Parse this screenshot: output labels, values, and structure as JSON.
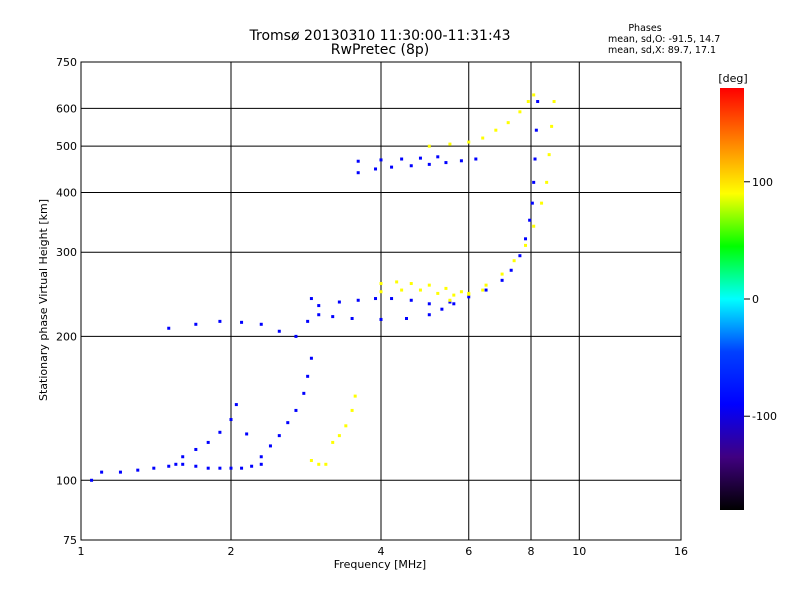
{
  "chart_data": {
    "type": "scatter",
    "title": "Tromsø 20130310 11:30:00-11:31:43",
    "subtitle": "RwPretec (8p)",
    "xlabel": "Frequency [MHz]",
    "ylabel": "Stationary phase Virtual Height [km]",
    "x_scale": "log",
    "y_scale": "log",
    "xlim": [
      1,
      16
    ],
    "ylim": [
      75,
      750
    ],
    "x_ticks": [
      1,
      2,
      4,
      6,
      8,
      10,
      16
    ],
    "y_ticks": [
      75,
      100,
      200,
      300,
      400,
      500,
      600,
      750
    ],
    "grid": true,
    "stats": {
      "heading": "Phases",
      "o_line": "mean, sd,O: -91.5, 14.7",
      "x_line": "mean, sd,X:  89.7, 17.1"
    },
    "colorbar": {
      "label": "[deg]",
      "range": [
        -180,
        180
      ],
      "ticks": [
        100,
        0,
        -100
      ],
      "colors": [
        "#ff0000",
        "#ff8000",
        "#ffff00",
        "#00ff00",
        "#00ffff",
        "#0040ff",
        "#0000ff",
        "#400080",
        "#000000"
      ]
    },
    "series": [
      {
        "name": "",
        "phase": -100,
        "points": [
          [
            1.05,
            100
          ],
          [
            1.1,
            104
          ],
          [
            1.2,
            104
          ],
          [
            1.3,
            105
          ],
          [
            1.4,
            106
          ],
          [
            1.5,
            107
          ],
          [
            1.6,
            108
          ],
          [
            1.7,
            107
          ],
          [
            1.8,
            106
          ],
          [
            1.9,
            106
          ],
          [
            2.0,
            106
          ],
          [
            2.1,
            106
          ],
          [
            2.2,
            107
          ],
          [
            2.3,
            108
          ]
        ]
      },
      {
        "name": "",
        "phase": -100,
        "points": [
          [
            1.55,
            108
          ],
          [
            1.6,
            112
          ],
          [
            1.7,
            116
          ],
          [
            1.8,
            120
          ],
          [
            1.9,
            126
          ],
          [
            2.0,
            134
          ],
          [
            2.05,
            144
          ],
          [
            2.15,
            125
          ],
          [
            2.3,
            112
          ],
          [
            2.4,
            118
          ],
          [
            2.5,
            124
          ],
          [
            2.6,
            132
          ],
          [
            2.7,
            140
          ],
          [
            2.8,
            152
          ],
          [
            2.85,
            165
          ],
          [
            2.9,
            180
          ]
        ]
      },
      {
        "name": "",
        "phase": -100,
        "points": [
          [
            1.5,
            208
          ],
          [
            1.7,
            212
          ],
          [
            1.9,
            215
          ],
          [
            2.1,
            214
          ],
          [
            2.3,
            212
          ],
          [
            2.5,
            205
          ],
          [
            2.7,
            200
          ],
          [
            2.85,
            215
          ],
          [
            2.9,
            240
          ],
          [
            3.0,
            222
          ],
          [
            3.2,
            220
          ],
          [
            3.5,
            218
          ],
          [
            4.0,
            217
          ],
          [
            4.5,
            218
          ],
          [
            5.0,
            222
          ],
          [
            5.3,
            228
          ],
          [
            5.6,
            234
          ]
        ]
      },
      {
        "name": "",
        "phase": -100,
        "points": [
          [
            3.0,
            232
          ],
          [
            3.3,
            236
          ],
          [
            3.6,
            238
          ],
          [
            3.9,
            240
          ],
          [
            4.2,
            240
          ],
          [
            4.6,
            238
          ],
          [
            5.0,
            234
          ]
        ]
      },
      {
        "name": "",
        "phase": -100,
        "points": [
          [
            5.5,
            236
          ],
          [
            6.0,
            242
          ],
          [
            6.5,
            250
          ],
          [
            7.0,
            262
          ],
          [
            7.3,
            275
          ],
          [
            7.6,
            295
          ],
          [
            7.8,
            320
          ],
          [
            7.95,
            350
          ],
          [
            8.05,
            380
          ],
          [
            8.1,
            420
          ],
          [
            8.15,
            470
          ],
          [
            8.2,
            540
          ],
          [
            8.25,
            620
          ]
        ]
      },
      {
        "name": "",
        "phase": 100,
        "points": [
          [
            5.5,
            238
          ],
          [
            6.0,
            245
          ],
          [
            6.5,
            256
          ],
          [
            7.0,
            270
          ],
          [
            7.4,
            288
          ],
          [
            7.8,
            310
          ],
          [
            8.1,
            340
          ],
          [
            8.4,
            380
          ],
          [
            8.6,
            420
          ],
          [
            8.7,
            480
          ],
          [
            8.8,
            550
          ],
          [
            8.9,
            620
          ]
        ]
      },
      {
        "name": "",
        "phase": 100,
        "points": [
          [
            4.0,
            258
          ],
          [
            4.3,
            260
          ],
          [
            4.6,
            258
          ],
          [
            5.0,
            256
          ],
          [
            5.4,
            252
          ],
          [
            5.8,
            248
          ],
          [
            6.0,
            246
          ],
          [
            6.4,
            250
          ]
        ]
      },
      {
        "name": "",
        "phase": 100,
        "points": [
          [
            4.0,
            248
          ],
          [
            4.4,
            250
          ],
          [
            4.8,
            250
          ],
          [
            5.2,
            246
          ],
          [
            5.6,
            244
          ]
        ]
      },
      {
        "name": "",
        "phase": -100,
        "points": [
          [
            3.6,
            440
          ],
          [
            3.9,
            448
          ],
          [
            4.2,
            452
          ],
          [
            4.6,
            455
          ],
          [
            5.0,
            458
          ],
          [
            5.4,
            462
          ],
          [
            5.8,
            466
          ],
          [
            6.2,
            470
          ]
        ]
      },
      {
        "name": "",
        "phase": -100,
        "points": [
          [
            3.6,
            465
          ],
          [
            4.0,
            468
          ],
          [
            4.4,
            470
          ],
          [
            4.8,
            472
          ],
          [
            5.2,
            475
          ]
        ]
      },
      {
        "name": "",
        "phase": 100,
        "points": [
          [
            5.0,
            500
          ],
          [
            5.5,
            505
          ],
          [
            6.0,
            510
          ],
          [
            6.4,
            520
          ],
          [
            6.8,
            540
          ],
          [
            7.2,
            560
          ],
          [
            7.6,
            590
          ],
          [
            7.9,
            620
          ],
          [
            8.1,
            640
          ]
        ]
      },
      {
        "name": "",
        "phase": 100,
        "points": [
          [
            2.9,
            110
          ],
          [
            3.0,
            108
          ],
          [
            3.1,
            108
          ],
          [
            3.2,
            120
          ],
          [
            3.3,
            124
          ],
          [
            3.4,
            130
          ],
          [
            3.5,
            140
          ],
          [
            3.55,
            150
          ]
        ]
      }
    ]
  }
}
